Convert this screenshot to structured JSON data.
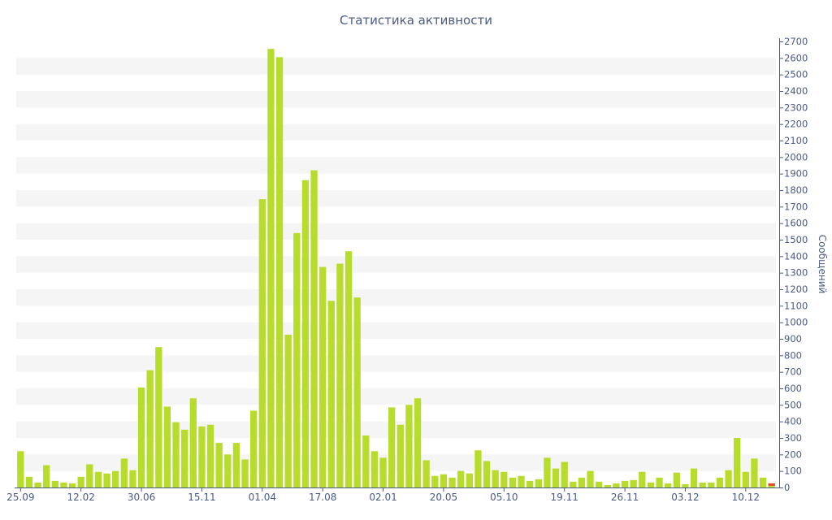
{
  "chart_data": {
    "type": "bar",
    "title": "Статистика активности",
    "ylabel": "Сообщений",
    "xlabel": "",
    "ylim": [
      0,
      2700
    ],
    "y_tick_step": 100,
    "y_axis_side": "right",
    "grid": "alternating horizontal bands",
    "x_tick_labels": [
      {
        "label": "25.09",
        "bar_index": 0
      },
      {
        "label": "12.02",
        "bar_index": 7
      },
      {
        "label": "30.06",
        "bar_index": 14
      },
      {
        "label": "15.11",
        "bar_index": 21
      },
      {
        "label": "01.04",
        "bar_index": 28
      },
      {
        "label": "17.08",
        "bar_index": 35
      },
      {
        "label": "02.01",
        "bar_index": 42
      },
      {
        "label": "20.05",
        "bar_index": 49
      },
      {
        "label": "05.10",
        "bar_index": 56
      },
      {
        "label": "19.11",
        "bar_index": 63
      },
      {
        "label": "26.11",
        "bar_index": 70
      },
      {
        "label": "03.12",
        "bar_index": 77
      },
      {
        "label": "10.12",
        "bar_index": 84
      }
    ],
    "series": [
      {
        "color": "#b8dc2c",
        "values": [
          220,
          65,
          30,
          135,
          40,
          30,
          25,
          65,
          140,
          95,
          85,
          100,
          175,
          105,
          605,
          710,
          850,
          490,
          395,
          350,
          540,
          370,
          380,
          270,
          200,
          270,
          170,
          465,
          1745,
          2655,
          2605,
          925,
          1540,
          1860,
          1920,
          1335,
          1130,
          1355,
          1430,
          1150,
          315,
          220,
          180,
          485,
          380,
          500,
          540,
          165,
          70,
          80,
          60,
          100,
          85,
          225,
          160,
          105,
          95,
          60,
          70,
          40,
          50,
          180,
          115,
          155,
          35,
          60,
          100,
          35,
          15,
          25,
          40,
          45,
          95,
          30,
          60,
          25,
          90,
          20,
          115,
          30,
          30,
          60,
          105,
          300,
          95,
          175,
          60,
          25
        ]
      }
    ],
    "highlight": {
      "bar_index": 87,
      "value": 25,
      "color": "#e04a2c"
    }
  }
}
